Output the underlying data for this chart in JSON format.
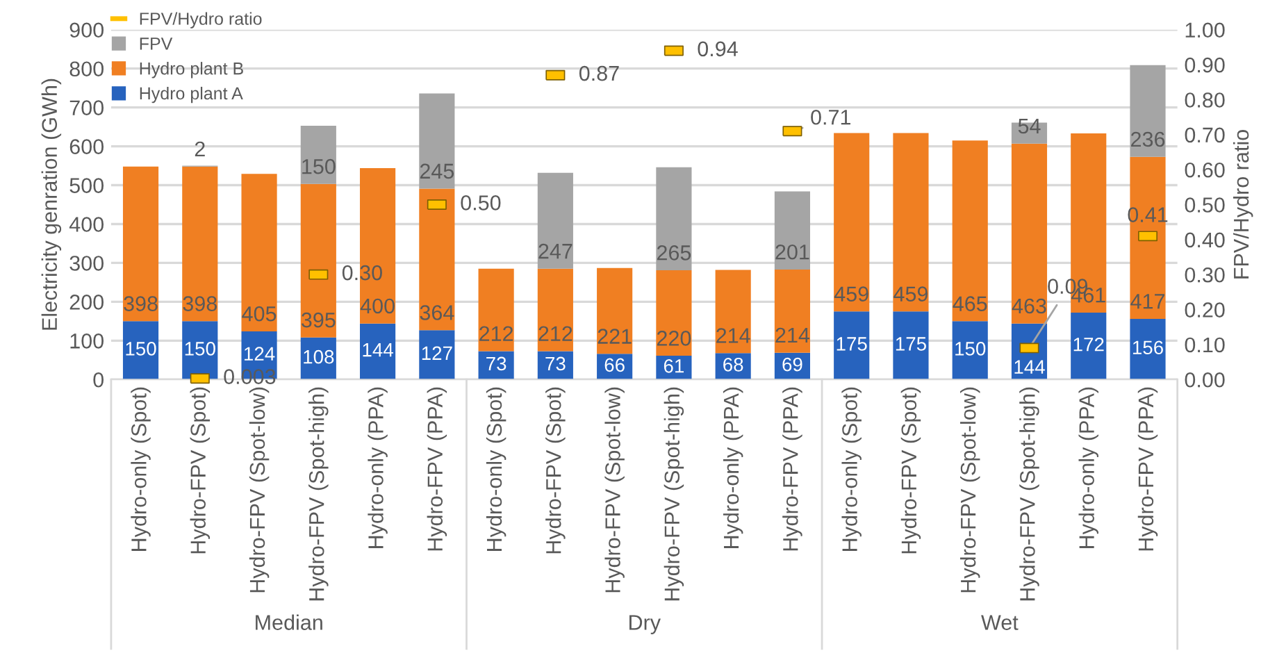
{
  "chart_data": {
    "type": "bar",
    "stacked": true,
    "ylabel": "Electricity genration (GWh)",
    "y2label": "FPV/Hydro ratio",
    "categories": [
      "Hydro-only (Spot)",
      "Hydro-FPV (Spot)",
      "Hydro-FPV (Spot-low)",
      "Hydro-FPV (Spot-high)",
      "Hydro-only (PPA)",
      "Hydro-FPV (PPA)",
      "Hydro-only (Spot)",
      "Hydro-FPV (Spot)",
      "Hydro-FPV (Spot-low)",
      "Hydro-FPV (Spot-high)",
      "Hydro-only (PPA)",
      "Hydro-FPV (PPA)",
      "Hydro-only (Spot)",
      "Hydro-FPV (Spot)",
      "Hydro-FPV (Spot-low)",
      "Hydro-FPV (Spot-high)",
      "Hydro-only (PPA)",
      "Hydro-FPV (PPA)"
    ],
    "annotations": [
      "Median",
      "Dry",
      "Wet"
    ],
    "series": [
      {
        "name": "Hydro plant A",
        "color": "#2763be",
        "values": [
          150,
          150,
          124,
          108,
          144,
          127,
          73,
          73,
          66,
          61,
          68,
          69,
          175,
          175,
          150,
          144,
          172,
          156
        ]
      },
      {
        "name": "Hydro plant B",
        "color": "#f07f22",
        "values": [
          398,
          398,
          405,
          395,
          400,
          364,
          212,
          212,
          221,
          220,
          214,
          214,
          459,
          459,
          465,
          463,
          461,
          417
        ]
      },
      {
        "name": "FPV",
        "color": "#a5a5a5",
        "values": [
          null,
          2,
          null,
          150,
          null,
          245,
          null,
          247,
          null,
          265,
          null,
          201,
          null,
          null,
          null,
          54,
          null,
          236
        ]
      },
      {
        "name": "FPV/Hydro ratio",
        "type": "scatter",
        "axis": "y2",
        "color": "#ffc000",
        "values": [
          null,
          0.003,
          null,
          0.3,
          null,
          0.5,
          null,
          0.87,
          null,
          0.94,
          null,
          0.71,
          null,
          null,
          null,
          0.09,
          null,
          0.41
        ],
        "value_labels": [
          null,
          "0.003",
          null,
          "0.30",
          null,
          "0.50",
          null,
          "0.87",
          null,
          "0.94",
          null,
          "0.71",
          null,
          null,
          null,
          "0.09",
          null,
          "0.41"
        ]
      }
    ],
    "data_labels": true,
    "ylim": [
      0,
      900
    ],
    "yticks": [
      0,
      100,
      200,
      300,
      400,
      500,
      600,
      700,
      800,
      900
    ],
    "y2lim": [
      0,
      1.0
    ],
    "y2ticks": [
      {
        "value": 0,
        "label": "0.00"
      },
      {
        "value": 0.1,
        "label": "0.10"
      },
      {
        "value": 0.2,
        "label": "0.20"
      },
      {
        "value": 0.3,
        "label": "0.30"
      },
      {
        "value": 0.4,
        "label": "0.40"
      },
      {
        "value": 0.5,
        "label": "0.50"
      },
      {
        "value": 0.6,
        "label": "0.60"
      },
      {
        "value": 0.7,
        "label": "0.70"
      },
      {
        "value": 0.8,
        "label": "0.80"
      },
      {
        "value": 0.9,
        "label": "0.90"
      },
      {
        "value": 1.0,
        "label": "1.00"
      }
    ],
    "grid": "y",
    "legend": "top left"
  }
}
